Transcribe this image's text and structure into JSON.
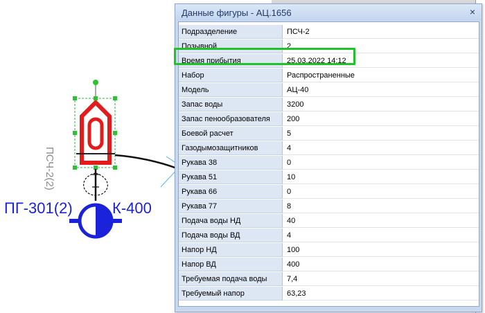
{
  "diagram": {
    "unit_label": "ПСЧ-2(2)",
    "hydrant_left": "ПГ-301(2)",
    "hydrant_right": "К-400"
  },
  "dialog": {
    "title": "Данные фигуры - АЦ.1656",
    "close": "×",
    "rows": [
      {
        "name": "Подразделение",
        "value": "ПСЧ-2"
      },
      {
        "name": "Позывной",
        "value": "2"
      },
      {
        "name": "Время прибытия",
        "value": "25.03.2022 14:12"
      },
      {
        "name": "Набор",
        "value": "Распространенные"
      },
      {
        "name": "Модель",
        "value": "АЦ-40"
      },
      {
        "name": "Запас воды",
        "value": "3200"
      },
      {
        "name": "Запас пенообразователя",
        "value": "200"
      },
      {
        "name": "Боевой расчет",
        "value": "5"
      },
      {
        "name": "Газодымозащитников",
        "value": "4"
      },
      {
        "name": "Рукава 38",
        "value": "0"
      },
      {
        "name": "Рукава 51",
        "value": "10"
      },
      {
        "name": "Рукава 66",
        "value": "0"
      },
      {
        "name": "Рукава 77",
        "value": "8"
      },
      {
        "name": "Подача воды НД",
        "value": "40"
      },
      {
        "name": "Подача воды ВД",
        "value": "4"
      },
      {
        "name": "Напор НД",
        "value": "100"
      },
      {
        "name": "Напор ВД",
        "value": "400"
      },
      {
        "name": "Требуемая подача воды",
        "value": "7,4"
      },
      {
        "name": "Требуемый напор",
        "value": "63,23"
      }
    ]
  },
  "colors": {
    "accent_red": "#e31b1b",
    "hydrant_blue": "#1a23d9",
    "highlight_green": "#22c12a"
  }
}
